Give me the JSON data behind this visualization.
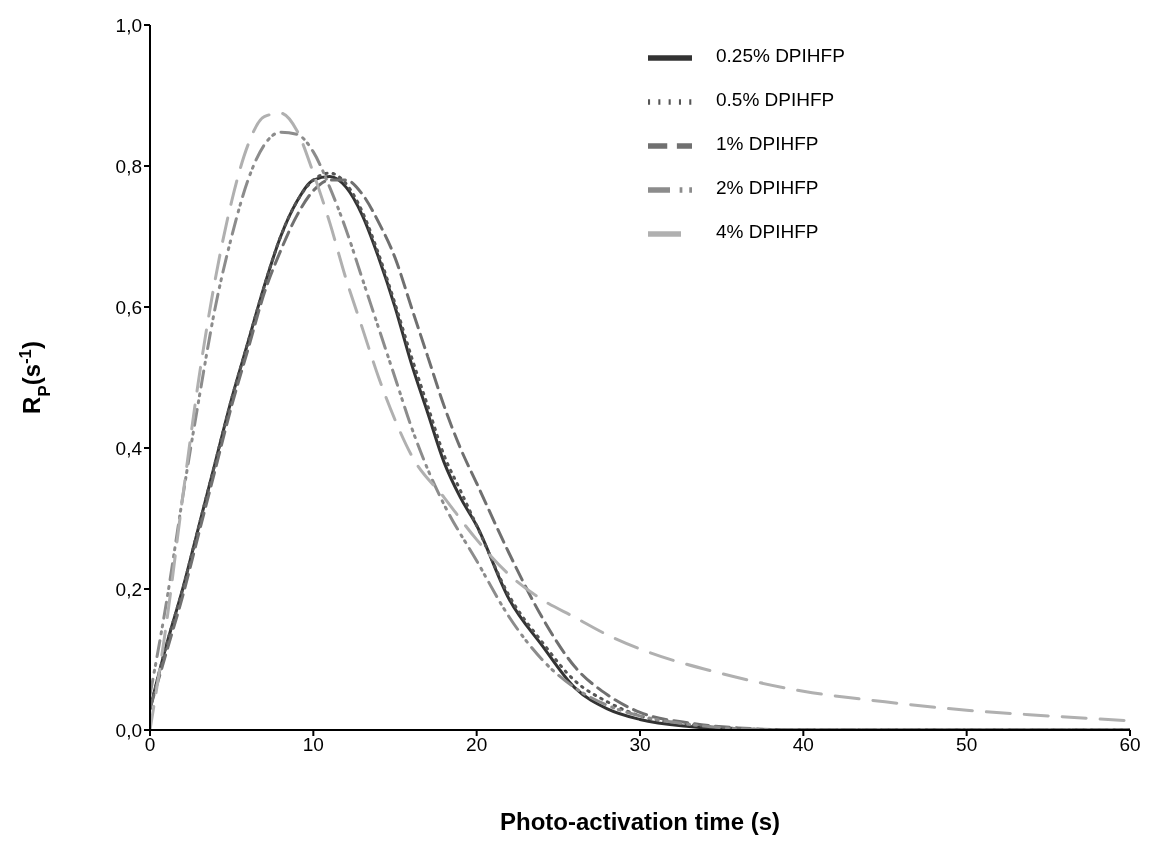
{
  "chart_data": {
    "type": "line",
    "xlabel": "Photo-activation time (s)",
    "ylabel": "R$_{P}$(s$^{-1}$)",
    "xlim": [
      0,
      60
    ],
    "xticks": [
      0,
      10,
      20,
      30,
      40,
      50,
      60
    ],
    "ylim": [
      0,
      1
    ],
    "yticks": [
      {
        "value": 0,
        "label": "0,0"
      },
      {
        "value": 0.2,
        "label": "0,2"
      },
      {
        "value": 0.4,
        "label": "0,4"
      },
      {
        "value": 0.6,
        "label": "0,6"
      },
      {
        "value": 0.8,
        "label": "0,8"
      },
      {
        "value": 1,
        "label": "1,0"
      }
    ],
    "grid": false,
    "legend": "top right",
    "marker": "none",
    "series": [
      {
        "name": "0.25% DPIHFP",
        "color": "#333333",
        "line_style": "solid",
        "x": [
          0,
          1,
          2,
          3,
          4,
          5,
          6,
          7,
          8,
          9,
          10,
          11,
          12,
          13,
          14,
          15,
          16,
          17,
          18,
          19,
          20,
          22,
          24,
          26,
          28,
          30,
          33,
          36,
          40,
          50,
          60
        ],
        "values": [
          0.03,
          0.12,
          0.2,
          0.29,
          0.38,
          0.47,
          0.55,
          0.63,
          0.7,
          0.75,
          0.78,
          0.785,
          0.77,
          0.73,
          0.67,
          0.6,
          0.52,
          0.45,
          0.38,
          0.33,
          0.29,
          0.185,
          0.12,
          0.06,
          0.03,
          0.015,
          0.005,
          0.001,
          0,
          0,
          0
        ]
      },
      {
        "name": "0.5% DPIHFP",
        "color": "#555555",
        "line_style": "dotted",
        "x": [
          0,
          1,
          2,
          3,
          4,
          5,
          6,
          7,
          8,
          9,
          10,
          11,
          12,
          13,
          14,
          15,
          16,
          17,
          18,
          19,
          20,
          22,
          24,
          26,
          28,
          30,
          33,
          36,
          40,
          50,
          60
        ],
        "values": [
          0.03,
          0.12,
          0.2,
          0.29,
          0.38,
          0.47,
          0.55,
          0.63,
          0.7,
          0.75,
          0.78,
          0.79,
          0.775,
          0.735,
          0.675,
          0.605,
          0.53,
          0.46,
          0.39,
          0.34,
          0.29,
          0.19,
          0.125,
          0.07,
          0.04,
          0.02,
          0.008,
          0.002,
          0,
          0,
          0
        ]
      },
      {
        "name": "1% DPIHFP",
        "color": "#707070",
        "line_style": "dashed",
        "x": [
          0,
          1,
          2,
          3,
          4,
          5,
          6,
          7,
          8,
          9,
          10,
          11,
          12,
          13,
          14,
          15,
          16,
          17,
          18,
          19,
          20,
          22,
          24,
          26,
          28,
          30,
          33,
          36,
          40,
          50,
          60
        ],
        "values": [
          0.03,
          0.11,
          0.19,
          0.28,
          0.37,
          0.46,
          0.54,
          0.62,
          0.68,
          0.73,
          0.765,
          0.78,
          0.78,
          0.76,
          0.72,
          0.67,
          0.6,
          0.53,
          0.46,
          0.4,
          0.35,
          0.25,
          0.16,
          0.09,
          0.05,
          0.025,
          0.01,
          0.003,
          0,
          0,
          0
        ]
      },
      {
        "name": "2% DPIHFP",
        "color": "#8c8c8c",
        "line_style": "dashdotdot",
        "x": [
          0,
          1,
          2,
          3,
          4,
          5,
          6,
          7,
          8,
          9,
          10,
          11,
          12,
          13,
          14,
          15,
          16,
          17,
          18,
          20,
          22,
          24,
          26,
          28,
          30,
          33,
          36,
          40,
          50,
          60
        ],
        "values": [
          0.05,
          0.18,
          0.33,
          0.47,
          0.6,
          0.7,
          0.78,
          0.83,
          0.848,
          0.845,
          0.82,
          0.77,
          0.71,
          0.64,
          0.57,
          0.5,
          0.43,
          0.37,
          0.32,
          0.24,
          0.16,
          0.1,
          0.06,
          0.035,
          0.02,
          0.008,
          0.002,
          0,
          0,
          0
        ]
      },
      {
        "name": "4% DPIHFP",
        "color": "#b0b0b0",
        "line_style": "longdash",
        "x": [
          0,
          1,
          2,
          3,
          4,
          5,
          6,
          7,
          8,
          9,
          10,
          11,
          12,
          13,
          14,
          15,
          16,
          18,
          20,
          22,
          24,
          26,
          28,
          30,
          35,
          40,
          45,
          50,
          55,
          60
        ],
        "values": [
          0,
          0.15,
          0.33,
          0.5,
          0.64,
          0.75,
          0.83,
          0.87,
          0.875,
          0.85,
          0.79,
          0.72,
          0.64,
          0.57,
          0.5,
          0.44,
          0.39,
          0.33,
          0.27,
          0.22,
          0.185,
          0.16,
          0.135,
          0.115,
          0.08,
          0.055,
          0.04,
          0.028,
          0.02,
          0.013
        ]
      }
    ]
  }
}
